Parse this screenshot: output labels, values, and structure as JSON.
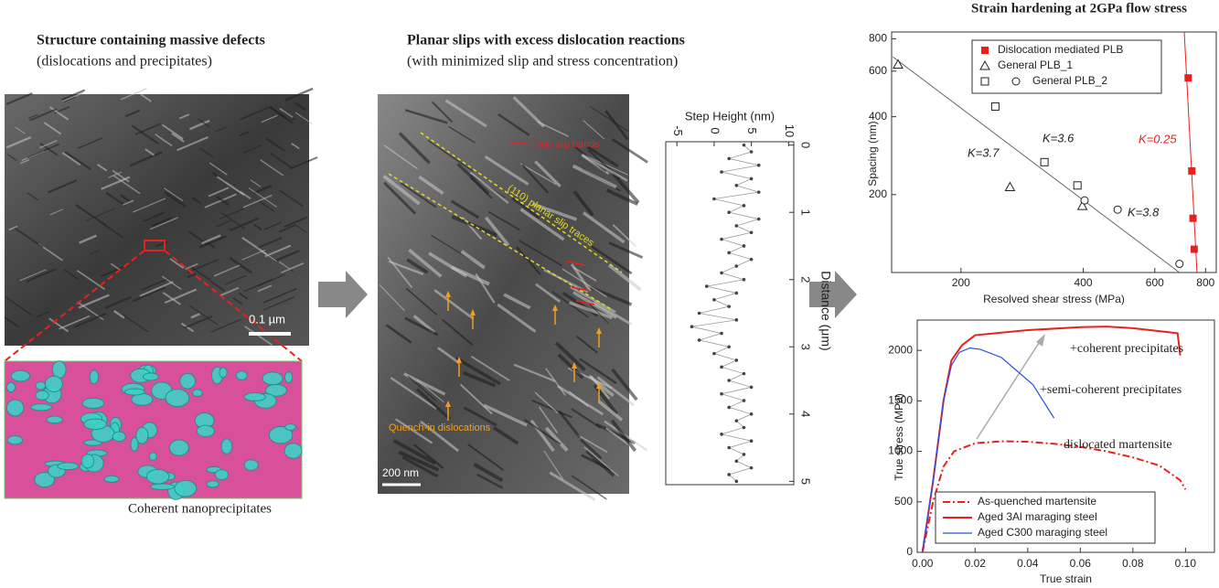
{
  "panels": [
    {
      "title": "Structure containing massive defects",
      "subtitle": "(dislocations and precipitates)",
      "scale_bar": "0.1 µm",
      "caption": "Coherent  nanoprecipitates"
    },
    {
      "title": "Planar slips with excess dislocation reactions",
      "subtitle": "(with minimized slip and stress concentration)",
      "annotations": [
        "Fine slip bands",
        "(110) planar slip traces",
        "Quench-in dislocations"
      ],
      "scale_bar": "200 nm"
    },
    {
      "title": "Strain hardening at 2GPa flow stress"
    }
  ],
  "chart_data": [
    {
      "type": "line",
      "x_label": "Distance (μm)",
      "y_label": "Step Height (nm)",
      "color": "#444",
      "x": [
        0,
        0.1,
        0.2,
        0.3,
        0.4,
        0.5,
        0.6,
        0.7,
        0.8,
        0.9,
        1,
        1.1,
        1.2,
        1.3,
        1.4,
        1.5,
        1.6,
        1.7,
        1.8,
        1.9,
        2,
        2.1,
        2.2,
        2.3,
        2.4,
        2.5,
        2.6,
        2.7,
        2.8,
        2.9,
        3,
        3.1,
        3.2,
        3.3,
        3.4,
        3.5,
        3.6,
        3.7,
        3.8,
        3.9,
        4,
        4.1,
        4.2,
        4.3,
        4.4,
        4.5,
        4.6,
        4.7,
        4.8,
        4.9,
        5
      ],
      "values": [
        4,
        5,
        2,
        6,
        1,
        5,
        3,
        6,
        0,
        4,
        2,
        6,
        3,
        5,
        1,
        4,
        2,
        5,
        3,
        1,
        4,
        -1,
        3,
        0,
        2,
        -2,
        3,
        -3,
        1,
        -2,
        2,
        0,
        3,
        1,
        4,
        2,
        5,
        1,
        4,
        2,
        5,
        3,
        4,
        1,
        5,
        2,
        4,
        3,
        5,
        2,
        3
      ],
      "xlim": [
        -0.05,
        5.05
      ],
      "xticks": [
        0,
        1,
        2,
        3,
        4,
        5
      ],
      "ylim": [
        -6.5,
        10.7
      ],
      "yticks": [
        -5,
        0,
        5,
        10
      ]
    },
    {
      "type": "scatter",
      "x_label": "Resolved shear stress (MPa)",
      "y_label": "Spacing (nm)",
      "xscale": "log",
      "yscale": "log",
      "xlim": [
        135,
        850
      ],
      "xticks": [
        200,
        400,
        600,
        800
      ],
      "ylim": [
        100,
        850
      ],
      "yticks": [
        200,
        400,
        600,
        800
      ],
      "legend": "upper center",
      "series": [
        {
          "name": "Dislocation mediated PLB",
          "color": "#e8211e",
          "markers": [
            "filled-square"
          ],
          "x": [
            725,
            740,
            745,
            750
          ],
          "values": [
            565,
            247,
            162,
            123
          ]
        },
        {
          "name": "General PLB_1",
          "color": "#222",
          "markers": [
            "triangle"
          ],
          "x": [
            140,
            264,
            398
          ],
          "values": [
            637,
            214,
            181
          ]
        },
        {
          "name": "General PLB_2",
          "color": "#222",
          "markers": [
            "square",
            "square",
            "square",
            "circle",
            "circle",
            "circle"
          ],
          "x": [
            243,
            321,
            387,
            403,
            486,
            690
          ],
          "values": [
            438,
            267,
            217,
            190,
            175,
            108
          ]
        }
      ],
      "fits": [
        {
          "color": "#666",
          "x": [
            136,
            690
          ],
          "values": [
            681,
            100
          ]
        },
        {
          "color": "#e8211e",
          "x": [
            709,
            762
          ],
          "values": [
            850,
            100
          ]
        }
      ],
      "annotations": [
        {
          "text": "K=3.6",
          "color": "#222"
        },
        {
          "text": "K=3.7",
          "color": "#222"
        },
        {
          "text": "K=3.8",
          "color": "#222"
        },
        {
          "text": "K=0.25",
          "color": "#e8211e"
        }
      ]
    },
    {
      "type": "line",
      "x_label": "True strain",
      "y_label": "True stress (MPa)",
      "legend": "lower left",
      "xlim": [
        -0.002,
        0.111
      ],
      "xticks": [
        {
          "value": 0,
          "label": "0.00"
        },
        {
          "value": 0.02,
          "label": "0.02"
        },
        {
          "value": 0.04,
          "label": "0.04"
        },
        {
          "value": 0.06,
          "label": "0.06"
        },
        {
          "value": 0.08,
          "label": "0.08"
        },
        {
          "value": 0.1,
          "label": "0.10"
        }
      ],
      "ylim": [
        0,
        2300
      ],
      "yticks": [
        0,
        500,
        1000,
        1500,
        2000
      ],
      "series": [
        {
          "name": "As-quenched martensite",
          "color": "#e8211e",
          "dash": "dashdot",
          "x": [
            0,
            0.004,
            0.008,
            0.012,
            0.02,
            0.03,
            0.04,
            0.05,
            0.06,
            0.07,
            0.08,
            0.09,
            0.098,
            0.1
          ],
          "values": [
            0,
            500,
            850,
            1000,
            1080,
            1100,
            1095,
            1075,
            1045,
            1000,
            940,
            860,
            714,
            623
          ]
        },
        {
          "name": "Aged 3Al maraging steel",
          "color": "#e8211e",
          "dash": "solid",
          "x": [
            0,
            0.004,
            0.008,
            0.011,
            0.015,
            0.02,
            0.04,
            0.06,
            0.07,
            0.08,
            0.09,
            0.097,
            0.098
          ],
          "values": [
            0,
            700,
            1500,
            1900,
            2050,
            2150,
            2200,
            2230,
            2235,
            2220,
            2190,
            2170,
            1950
          ]
        },
        {
          "name": "Aged C300 maraging steel",
          "color": "#2a4fe0",
          "dash": "solid",
          "x": [
            0,
            0.004,
            0.008,
            0.011,
            0.014,
            0.018,
            0.022,
            0.03,
            0.042,
            0.05
          ],
          "values": [
            0,
            700,
            1500,
            1850,
            1980,
            2024,
            2010,
            1930,
            1660,
            1330
          ]
        }
      ],
      "annotations": [
        {
          "text": "+coherent precipitates"
        },
        {
          "text": "+semi-coherent precipitates"
        },
        {
          "text": "dislocated martensite"
        }
      ]
    }
  ]
}
